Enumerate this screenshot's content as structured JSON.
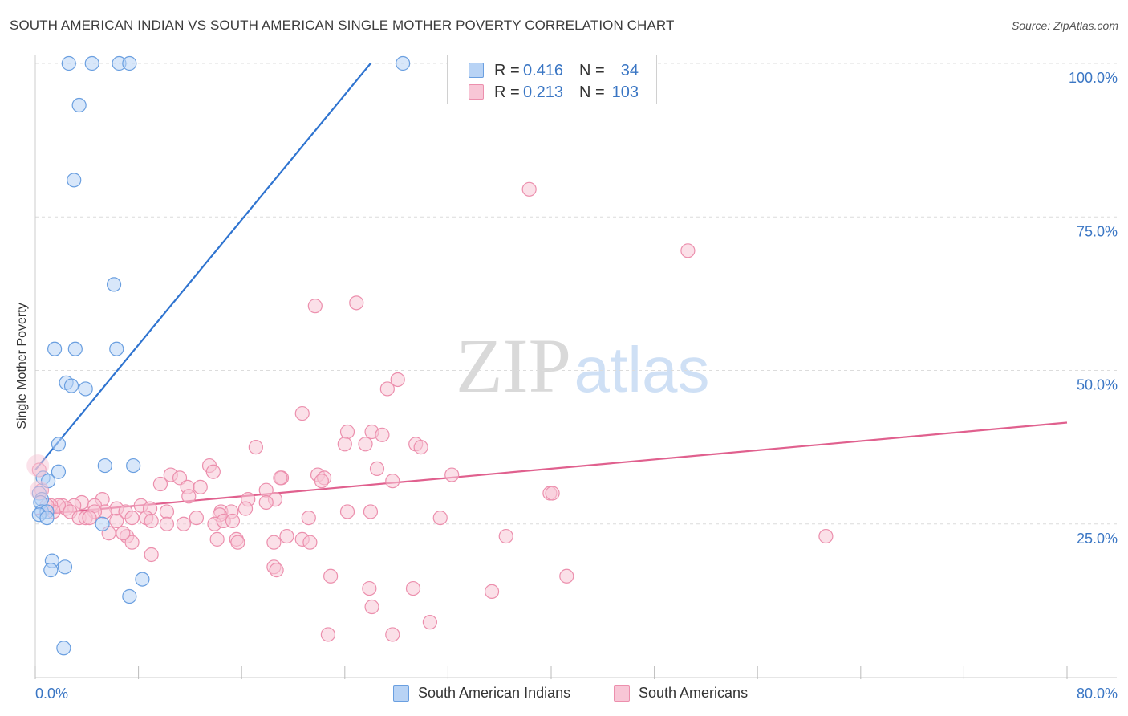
{
  "title": "SOUTH AMERICAN INDIAN VS SOUTH AMERICAN SINGLE MOTHER POVERTY CORRELATION CHART",
  "source": "Source: ZipAtlas.com",
  "watermark": {
    "zip": "ZIP",
    "atlas": "atlas"
  },
  "colors": {
    "blue_fill": "#b8d3f5",
    "blue_stroke": "#6a9fe0",
    "blue_line": "#2f74d0",
    "pink_fill": "#f8c6d6",
    "pink_stroke": "#ec8fad",
    "pink_line": "#e0608e",
    "axis_text": "#3a76c4",
    "grid": "#dcdcdc"
  },
  "legend": {
    "series1": {
      "r_label": "R =",
      "r_value": "0.416",
      "n_label": "N =",
      "n_value": "34",
      "name": "South American Indians"
    },
    "series2": {
      "r_label": "R =",
      "r_value": "0.213",
      "n_label": "N =",
      "n_value": "103",
      "name": "South Americans"
    }
  },
  "chart_data": {
    "type": "scatter",
    "xlabel": "",
    "ylabel": "Single Mother Poverty",
    "xlim": [
      0,
      80
    ],
    "ylim": [
      0,
      100
    ],
    "x_tick_labels": [
      "0.0%",
      "80.0%"
    ],
    "y_tick_labels": [
      "25.0%",
      "50.0%",
      "75.0%",
      "100.0%"
    ],
    "y_ticks": [
      25,
      50,
      75,
      100
    ],
    "x_minor_ticks": [
      8,
      16,
      24,
      32,
      40,
      48,
      56,
      64,
      72,
      80
    ],
    "series": [
      {
        "name": "South American Indians",
        "color": "blue",
        "trend": {
          "x": [
            0,
            26
          ],
          "y": [
            33.8,
            100
          ]
        },
        "points": [
          [
            2.6,
            100
          ],
          [
            4.4,
            100
          ],
          [
            6.5,
            100
          ],
          [
            7.3,
            100
          ],
          [
            28.5,
            100
          ],
          [
            3.4,
            93.2
          ],
          [
            3.0,
            81
          ],
          [
            6.1,
            64
          ],
          [
            1.5,
            53.5
          ],
          [
            3.1,
            53.5
          ],
          [
            6.3,
            53.5
          ],
          [
            2.4,
            48
          ],
          [
            2.8,
            47.5
          ],
          [
            3.9,
            47
          ],
          [
            1.8,
            38
          ],
          [
            1.8,
            33.5
          ],
          [
            5.4,
            34.5
          ],
          [
            7.6,
            34.5
          ],
          [
            0.6,
            32.5
          ],
          [
            1.0,
            32
          ],
          [
            0.3,
            30
          ],
          [
            0.5,
            29
          ],
          [
            0.4,
            28.5
          ],
          [
            0.5,
            27
          ],
          [
            0.9,
            27
          ],
          [
            0.3,
            26.5
          ],
          [
            0.9,
            26
          ],
          [
            5.2,
            25
          ],
          [
            1.3,
            19
          ],
          [
            1.2,
            17.5
          ],
          [
            2.3,
            18
          ],
          [
            8.3,
            16
          ],
          [
            7.3,
            13.2
          ],
          [
            2.2,
            4.8
          ]
        ]
      },
      {
        "name": "South Americans",
        "color": "pink",
        "trend": {
          "x": [
            0,
            80
          ],
          "y": [
            26.5,
            41.5
          ]
        },
        "points": [
          [
            38.3,
            79.5
          ],
          [
            50.6,
            69.5
          ],
          [
            21.7,
            60.5
          ],
          [
            24.9,
            61
          ],
          [
            28.1,
            48.5
          ],
          [
            27.3,
            47
          ],
          [
            20.7,
            43
          ],
          [
            24.2,
            40
          ],
          [
            26.1,
            40
          ],
          [
            26.9,
            39.5
          ],
          [
            24.0,
            38
          ],
          [
            25.6,
            38
          ],
          [
            29.5,
            38
          ],
          [
            29.9,
            37.5
          ],
          [
            17.1,
            37.5
          ],
          [
            13.5,
            34.5
          ],
          [
            13.8,
            33.5
          ],
          [
            26.5,
            34
          ],
          [
            32.3,
            33
          ],
          [
            10.5,
            33
          ],
          [
            11.2,
            32.5
          ],
          [
            19.1,
            32.5
          ],
          [
            21.9,
            33
          ],
          [
            22.4,
            32.5
          ],
          [
            19.0,
            32.5
          ],
          [
            22.2,
            32
          ],
          [
            9.7,
            31.5
          ],
          [
            11.8,
            31
          ],
          [
            27.7,
            32
          ],
          [
            12.8,
            31
          ],
          [
            17.9,
            30.5
          ],
          [
            11.9,
            29.5
          ],
          [
            16.5,
            29
          ],
          [
            18.6,
            29
          ],
          [
            39.9,
            30
          ],
          [
            40.1,
            30
          ],
          [
            5.2,
            29
          ],
          [
            3.6,
            28.5
          ],
          [
            8.2,
            28
          ],
          [
            4.6,
            28
          ],
          [
            6.3,
            27.5
          ],
          [
            2.1,
            28
          ],
          [
            3.0,
            28
          ],
          [
            2.4,
            27.5
          ],
          [
            1.8,
            28
          ],
          [
            1.2,
            28
          ],
          [
            1.4,
            27
          ],
          [
            2.7,
            27
          ],
          [
            8.9,
            27.5
          ],
          [
            10.2,
            27
          ],
          [
            14.4,
            27
          ],
          [
            15.2,
            27
          ],
          [
            16.3,
            27.5
          ],
          [
            7.0,
            27
          ],
          [
            5.4,
            27
          ],
          [
            4.6,
            27
          ],
          [
            24.2,
            27
          ],
          [
            26.0,
            27
          ],
          [
            31.4,
            26
          ],
          [
            14.3,
            26.5
          ],
          [
            3.4,
            26
          ],
          [
            3.9,
            26
          ],
          [
            4.2,
            26
          ],
          [
            8.6,
            26
          ],
          [
            12.5,
            26
          ],
          [
            9.0,
            25.5
          ],
          [
            10.2,
            25
          ],
          [
            11.5,
            25
          ],
          [
            13.9,
            25
          ],
          [
            14.6,
            25.5
          ],
          [
            15.3,
            25.5
          ],
          [
            17.9,
            28.5
          ],
          [
            21.2,
            26
          ],
          [
            6.3,
            25.5
          ],
          [
            7.5,
            26
          ],
          [
            15.6,
            22.5
          ],
          [
            7.1,
            23
          ],
          [
            7.5,
            22
          ],
          [
            5.7,
            23.5
          ],
          [
            6.8,
            23.5
          ],
          [
            14.1,
            22.5
          ],
          [
            15.7,
            22
          ],
          [
            18.5,
            22
          ],
          [
            19.5,
            23
          ],
          [
            20.7,
            22.5
          ],
          [
            21.3,
            22
          ],
          [
            36.5,
            23
          ],
          [
            61.3,
            23
          ],
          [
            9.0,
            20
          ],
          [
            18.5,
            18
          ],
          [
            18.7,
            17.5
          ],
          [
            22.9,
            16.5
          ],
          [
            41.2,
            16.5
          ],
          [
            25.9,
            14.5
          ],
          [
            29.3,
            14.5
          ],
          [
            35.4,
            14
          ],
          [
            26.1,
            11.5
          ],
          [
            30.6,
            9
          ],
          [
            22.7,
            7
          ],
          [
            27.7,
            7
          ],
          [
            0.3,
            33.8
          ],
          [
            0.5,
            30.5
          ],
          [
            0.9,
            28
          ]
        ]
      }
    ]
  }
}
